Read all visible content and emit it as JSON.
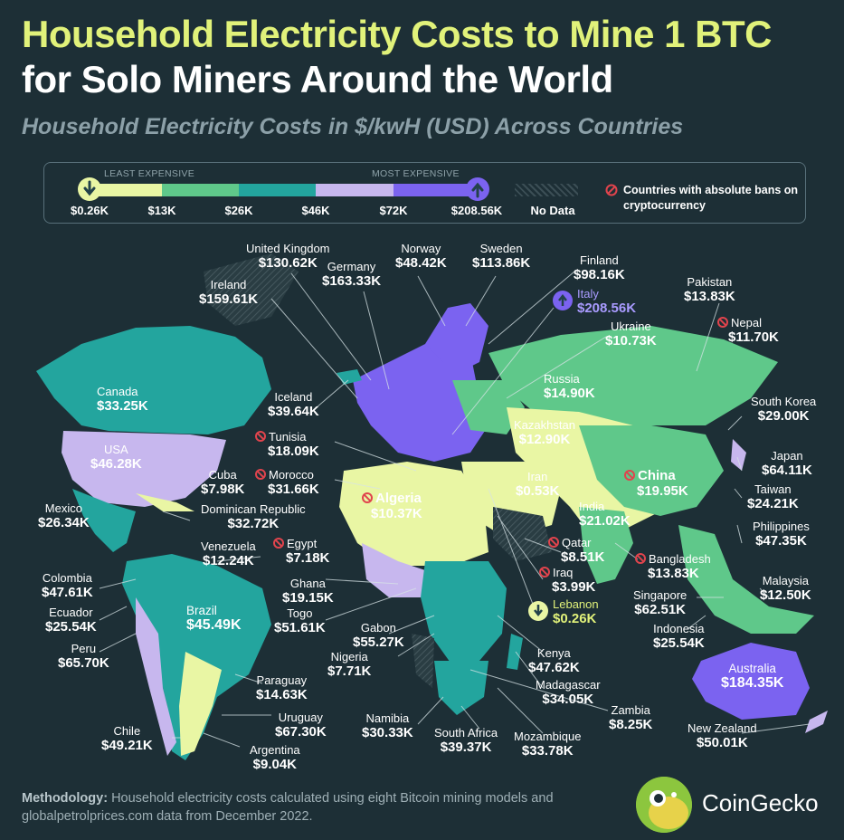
{
  "title": {
    "line1": "Household Electricity Costs to Mine 1 BTC",
    "line2": "for Solo Miners Around the World",
    "subtitle": "Household Electricity Costs in $/kwH (USD) Across Countries"
  },
  "legend": {
    "least_label": "LEAST EXPENSIVE",
    "most_label": "MOST EXPENSIVE",
    "ticks": [
      "$0.26K",
      "$13K",
      "$26K",
      "$46K",
      "$72K",
      "$208.56K"
    ],
    "bands": [
      "#e9f6a4",
      "#5fc88a",
      "#23a59e",
      "#c7b7ee",
      "#7b63f0"
    ],
    "no_data_label": "No Data",
    "ban_label": "Countries with absolute bans on cryptocurrency",
    "ban_color": "#e0444d"
  },
  "countries": [
    {
      "name": "United Kingdom",
      "value": "$130.62K"
    },
    {
      "name": "Norway",
      "value": "$48.42K"
    },
    {
      "name": "Sweden",
      "value": "$113.86K"
    },
    {
      "name": "Finland",
      "value": "$98.16K"
    },
    {
      "name": "Germany",
      "value": "$163.33K"
    },
    {
      "name": "Ireland",
      "value": "$159.61K"
    },
    {
      "name": "Pakistan",
      "value": "$13.83K"
    },
    {
      "name": "Italy",
      "value": "$208.56K"
    },
    {
      "name": "Ukraine",
      "value": "$10.73K"
    },
    {
      "name": "Nepal",
      "value": "$11.70K"
    },
    {
      "name": "Canada",
      "value": "$33.25K"
    },
    {
      "name": "Russia",
      "value": "$14.90K"
    },
    {
      "name": "Iceland",
      "value": "$39.64K"
    },
    {
      "name": "South Korea",
      "value": "$29.00K"
    },
    {
      "name": "Kazakhstan",
      "value": "$12.90K"
    },
    {
      "name": "USA",
      "value": "$46.28K"
    },
    {
      "name": "Tunisia",
      "value": "$18.09K"
    },
    {
      "name": "Japan",
      "value": "$64.11K"
    },
    {
      "name": "Cuba",
      "value": "$7.98K"
    },
    {
      "name": "Morocco",
      "value": "$31.66K"
    },
    {
      "name": "Iran",
      "value": "$0.53K"
    },
    {
      "name": "China",
      "value": "$19.95K"
    },
    {
      "name": "Taiwan",
      "value": "$24.21K"
    },
    {
      "name": "Mexico",
      "value": "$26.34K"
    },
    {
      "name": "Algeria",
      "value": "$10.37K"
    },
    {
      "name": "Dominican Republic",
      "value": "$32.72K"
    },
    {
      "name": "India",
      "value": "$21.02K"
    },
    {
      "name": "Philippines",
      "value": "$47.35K"
    },
    {
      "name": "Venezuela",
      "value": "$12.24K"
    },
    {
      "name": "Egypt",
      "value": "$7.18K"
    },
    {
      "name": "Qatar",
      "value": "$8.51K"
    },
    {
      "name": "Bangladesh",
      "value": "$13.83K"
    },
    {
      "name": "Colombia",
      "value": "$47.61K"
    },
    {
      "name": "Iraq",
      "value": "$3.99K"
    },
    {
      "name": "Malaysia",
      "value": "$12.50K"
    },
    {
      "name": "Ghana",
      "value": "$19.15K"
    },
    {
      "name": "Singapore",
      "value": "$62.51K"
    },
    {
      "name": "Ecuador",
      "value": "$25.54K"
    },
    {
      "name": "Brazil",
      "value": "$45.49K"
    },
    {
      "name": "Togo",
      "value": "$51.61K"
    },
    {
      "name": "Lebanon",
      "value": "$0.26K"
    },
    {
      "name": "Gabon",
      "value": "$55.27K"
    },
    {
      "name": "Indonesia",
      "value": "$25.54K"
    },
    {
      "name": "Peru",
      "value": "$65.70K"
    },
    {
      "name": "Kenya",
      "value": "$47.62K"
    },
    {
      "name": "Nigeria",
      "value": "$7.71K"
    },
    {
      "name": "Australia",
      "value": "$184.35K"
    },
    {
      "name": "Paraguay",
      "value": "$14.63K"
    },
    {
      "name": "Madagascar",
      "value": "$34.05K"
    },
    {
      "name": "Zambia",
      "value": "$8.25K"
    },
    {
      "name": "Uruguay",
      "value": "$67.30K"
    },
    {
      "name": "Chile",
      "value": "$49.21K"
    },
    {
      "name": "Namibia",
      "value": "$30.33K"
    },
    {
      "name": "South Africa",
      "value": "$39.37K"
    },
    {
      "name": "Mozambique",
      "value": "$33.78K"
    },
    {
      "name": "New Zealand",
      "value": "$50.01K"
    },
    {
      "name": "Argentina",
      "value": "$9.04K"
    }
  ],
  "banned_countries": [
    "Nepal",
    "Tunisia",
    "Morocco",
    "China",
    "Algeria",
    "Egypt",
    "Qatar",
    "Bangladesh",
    "Iraq"
  ],
  "colors": {
    "background": "#1d2f36",
    "title_accent": "#e1f27a",
    "italy_highlight": "#a99bff",
    "lebanon_highlight": "#e1f27a"
  },
  "methodology": {
    "label": "Methodology:",
    "text": " Household electricity costs calculated using eight Bitcoin mining models and globalpetrolprices.com data from December 2022."
  },
  "brand": {
    "name": "CoinGecko",
    "logo_icon": "gecko-logo-icon"
  }
}
